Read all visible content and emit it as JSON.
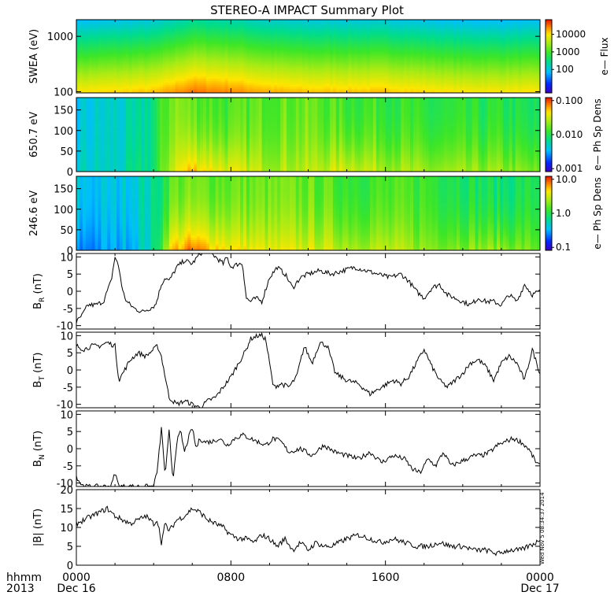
{
  "title": "STEREO-A IMPACT Summary Plot",
  "timestamp_note": "Wed Nov  5 08:34:37 2014",
  "x_axis": {
    "corner_labels": [
      "hhmm",
      "2013"
    ],
    "ticks": [
      {
        "hours": 0,
        "time": "0000",
        "date": "Dec 16"
      },
      {
        "hours": 8,
        "time": "0800",
        "date": ""
      },
      {
        "hours": 16,
        "time": "1600",
        "date": ""
      },
      {
        "hours": 24,
        "time": "0000",
        "date": "Dec 17"
      }
    ],
    "range_hours": [
      0,
      24
    ]
  },
  "colorbars": {
    "swea": {
      "ticks": [
        "10000",
        "1000",
        "100"
      ],
      "label": "e— Flux"
    },
    "pad650": {
      "ticks": [
        "0.100",
        "0.010",
        "0.001"
      ],
      "label": "e— Ph Sp Dens"
    },
    "pad246": {
      "ticks": [
        "10.0",
        "1.0",
        "0.1"
      ],
      "label": "e— Ph Sp Dens"
    }
  },
  "chart_data": [
    {
      "type": "heatmap",
      "ylabel": "SWEA (eV)",
      "yscale": "log",
      "ylim": [
        95,
        2000
      ],
      "yticks": [
        "1000",
        "100"
      ],
      "x_hours": [
        0,
        2,
        4,
        5,
        6,
        8,
        10,
        12,
        14,
        16,
        18,
        20,
        22,
        24
      ],
      "peak_log10_flux_low_energy": [
        4.0,
        4.1,
        4.2,
        4.4,
        4.6,
        4.5,
        4.3,
        4.2,
        4.2,
        4.2,
        4.1,
        4.0,
        4.0,
        4.0
      ],
      "color_scale": "log10 e- flux 1 to 100000"
    },
    {
      "type": "heatmap",
      "ylabel": "650.7 eV",
      "ylim": [
        0,
        180
      ],
      "yticks": [
        "0",
        "50",
        "100",
        "150"
      ],
      "x_hours": [
        0,
        2,
        3,
        4,
        5,
        6,
        8,
        10,
        12,
        14,
        16,
        18,
        20,
        22,
        24
      ],
      "log10_density_low_pitch": [
        -2.3,
        -2.3,
        -2.2,
        -2.1,
        -1.5,
        -1.3,
        -1.5,
        -1.6,
        -1.6,
        -1.5,
        -1.6,
        -1.7,
        -1.7,
        -1.7,
        -1.8
      ],
      "log10_density_high_pitch": [
        -2.4,
        -2.3,
        -2.3,
        -2.1,
        -1.7,
        -1.8,
        -1.9,
        -1.8,
        -1.8,
        -1.9,
        -1.9,
        -2.0,
        -2.0,
        -2.0,
        -2.1
      ],
      "color_scale": "log10 phase space density 0.001 to 0.100"
    },
    {
      "type": "heatmap",
      "ylabel": "246.6 eV",
      "ylim": [
        0,
        180
      ],
      "yticks": [
        "0",
        "50",
        "100",
        "150"
      ],
      "x_hours": [
        0,
        2,
        3,
        4,
        5,
        6,
        8,
        10,
        12,
        14,
        16,
        18,
        20,
        22,
        24
      ],
      "log10_density_low_pitch": [
        -0.6,
        -0.5,
        -0.4,
        -0.2,
        0.7,
        0.8,
        0.6,
        0.5,
        0.5,
        0.4,
        0.4,
        0.3,
        0.3,
        0.3,
        0.2
      ],
      "log10_density_high_pitch": [
        -0.4,
        -0.4,
        -0.3,
        -0.2,
        0.2,
        0.2,
        0.2,
        0.2,
        0.2,
        0.1,
        0.1,
        0.1,
        0.0,
        -0.1,
        0.0
      ],
      "color_scale": "log10 phase space density 0.1 to 10.0"
    },
    {
      "type": "line",
      "ylabel": "B_R (nT)",
      "ylim": [
        -11,
        11
      ],
      "yticks": [
        -10,
        -5,
        0,
        5,
        10
      ],
      "x": [
        0,
        0.3,
        0.6,
        1.0,
        1.4,
        1.8,
        2.0,
        2.2,
        2.4,
        2.6,
        3.0,
        3.4,
        3.8,
        4.1,
        4.4,
        4.6,
        4.8,
        5.2,
        5.6,
        6.0,
        6.4,
        6.8,
        7.2,
        7.6,
        7.8,
        8.0,
        8.4,
        8.6,
        8.8,
        9.0,
        9.3,
        9.6,
        10.0,
        10.4,
        10.8,
        11.2,
        11.6,
        12.0,
        12.6,
        13.2,
        13.8,
        14.4,
        15.0,
        15.6,
        16.2,
        16.8,
        17.2,
        17.6,
        18.0,
        18.4,
        18.8,
        19.2,
        19.6,
        20.0,
        20.4,
        20.8,
        21.2,
        21.6,
        22.0,
        22.4,
        22.8,
        23.2,
        23.6,
        24.0
      ],
      "y": [
        -9,
        -7,
        -4,
        -4,
        -3,
        3,
        10,
        7,
        0,
        -3,
        -5,
        -6,
        -5,
        -4,
        2,
        4,
        3,
        7,
        9,
        8,
        11,
        12,
        10,
        8,
        10,
        7,
        8,
        8,
        -2,
        -3,
        -2,
        -3,
        4,
        7,
        5,
        1,
        4,
        5,
        6,
        5,
        6,
        7,
        6,
        5,
        4,
        5,
        3,
        0,
        -2,
        1,
        2,
        -1,
        -2,
        -3,
        -4,
        -2,
        -3,
        -3,
        -4,
        -1,
        -3,
        2,
        -1,
        0
      ]
    },
    {
      "type": "line",
      "ylabel": "B_T (nT)",
      "ylim": [
        -11,
        11
      ],
      "yticks": [
        -10,
        -5,
        0,
        5,
        10
      ],
      "x": [
        0,
        0.4,
        0.8,
        1.2,
        1.6,
        2.0,
        2.2,
        2.4,
        2.8,
        3.2,
        3.6,
        4.0,
        4.2,
        4.4,
        4.8,
        5.2,
        5.6,
        6.0,
        6.4,
        6.8,
        7.2,
        7.6,
        8.0,
        8.4,
        8.8,
        9.0,
        9.4,
        9.6,
        9.8,
        10.2,
        10.6,
        11.0,
        11.4,
        11.8,
        12.2,
        12.6,
        13.0,
        13.4,
        14.0,
        14.6,
        15.2,
        15.8,
        16.4,
        16.8,
        17.2,
        17.6,
        18.0,
        18.4,
        18.8,
        19.2,
        19.6,
        20.0,
        20.4,
        20.8,
        21.2,
        21.6,
        22.0,
        22.4,
        22.8,
        23.2,
        23.6,
        24.0
      ],
      "y": [
        7,
        6,
        7,
        7,
        8,
        7,
        -3,
        -1,
        3,
        5,
        4,
        6,
        7,
        4,
        -8,
        -10,
        -9,
        -10,
        -11,
        -9,
        -8,
        -5,
        -2,
        2,
        6,
        9,
        10,
        10,
        9,
        -5,
        -4,
        -5,
        -2,
        7,
        2,
        8,
        7,
        -1,
        -3,
        -4,
        -7,
        -5,
        -3,
        -4,
        -2,
        2,
        6,
        1,
        -3,
        -5,
        -3,
        -1,
        2,
        3,
        1,
        -3,
        2,
        4,
        2,
        -3,
        6,
        -1
      ]
    },
    {
      "type": "line",
      "ylabel": "B_N (nT)",
      "ylim": [
        -11,
        11
      ],
      "yticks": [
        -10,
        -5,
        0,
        5,
        10
      ],
      "x": [
        0,
        0.2,
        0.4,
        0.6,
        0.8,
        1.0,
        1.4,
        1.8,
        2.0,
        2.2,
        2.4,
        2.8,
        3.2,
        3.6,
        4.0,
        4.2,
        4.4,
        4.6,
        4.8,
        5.0,
        5.2,
        5.4,
        5.6,
        5.8,
        6.0,
        6.2,
        6.4,
        6.6,
        7.0,
        7.4,
        7.8,
        8.2,
        8.6,
        9.0,
        9.4,
        9.8,
        10.2,
        10.6,
        11.0,
        11.6,
        12.2,
        12.8,
        13.4,
        14.0,
        14.6,
        15.2,
        15.8,
        16.4,
        17.0,
        17.4,
        17.8,
        18.2,
        18.6,
        19.0,
        19.4,
        19.8,
        20.2,
        20.6,
        21.0,
        21.4,
        21.8,
        22.2,
        22.6,
        23.0,
        23.4,
        23.8,
        24.0
      ],
      "y": [
        -8,
        -10,
        -11,
        -11,
        -11,
        -11,
        -11,
        -11,
        -7,
        -11,
        -11,
        -11,
        -11,
        -11,
        -11,
        -6,
        6,
        -8,
        5,
        -9,
        2,
        5,
        -1,
        3,
        6,
        0,
        3,
        2,
        2,
        3,
        1,
        3,
        4,
        3,
        2,
        1,
        3,
        2,
        -1,
        0,
        -2,
        1,
        -1,
        -2,
        -3,
        -1,
        -4,
        -2,
        -3,
        -6,
        -7,
        -3,
        -5,
        -1,
        -5,
        -4,
        -3,
        -2,
        -2,
        -1,
        1,
        2,
        3,
        2,
        0,
        -4,
        -5
      ]
    },
    {
      "type": "line",
      "ylabel": "|B| (nT)",
      "ylim": [
        0,
        20
      ],
      "yticks": [
        0,
        5,
        10,
        15,
        20
      ],
      "x": [
        0,
        0.4,
        0.8,
        1.2,
        1.6,
        2.0,
        2.4,
        2.8,
        3.2,
        3.6,
        4.0,
        4.2,
        4.4,
        4.6,
        4.8,
        5.2,
        5.6,
        6.0,
        6.4,
        6.8,
        7.2,
        7.6,
        8.0,
        8.4,
        8.8,
        9.2,
        9.6,
        10.0,
        10.4,
        10.8,
        11.2,
        11.6,
        12.0,
        12.4,
        12.8,
        13.2,
        13.6,
        14.0,
        14.6,
        15.2,
        15.8,
        16.4,
        17.0,
        17.6,
        18.2,
        18.8,
        19.4,
        20.0,
        20.6,
        21.2,
        21.8,
        22.4,
        23.0,
        23.4,
        23.8,
        24.0
      ],
      "y": [
        11,
        12,
        13,
        14,
        15,
        13,
        12,
        11,
        12,
        13,
        11,
        12,
        6,
        11,
        9,
        12,
        13,
        15,
        14,
        12,
        11,
        10,
        8,
        7,
        7,
        6,
        8,
        7,
        5,
        7,
        4,
        6,
        4,
        6,
        5,
        5,
        6,
        7,
        8,
        7,
        6,
        7,
        6,
        5,
        5,
        6,
        5,
        5,
        4,
        4,
        3,
        4,
        4,
        5,
        6,
        7
      ]
    }
  ]
}
